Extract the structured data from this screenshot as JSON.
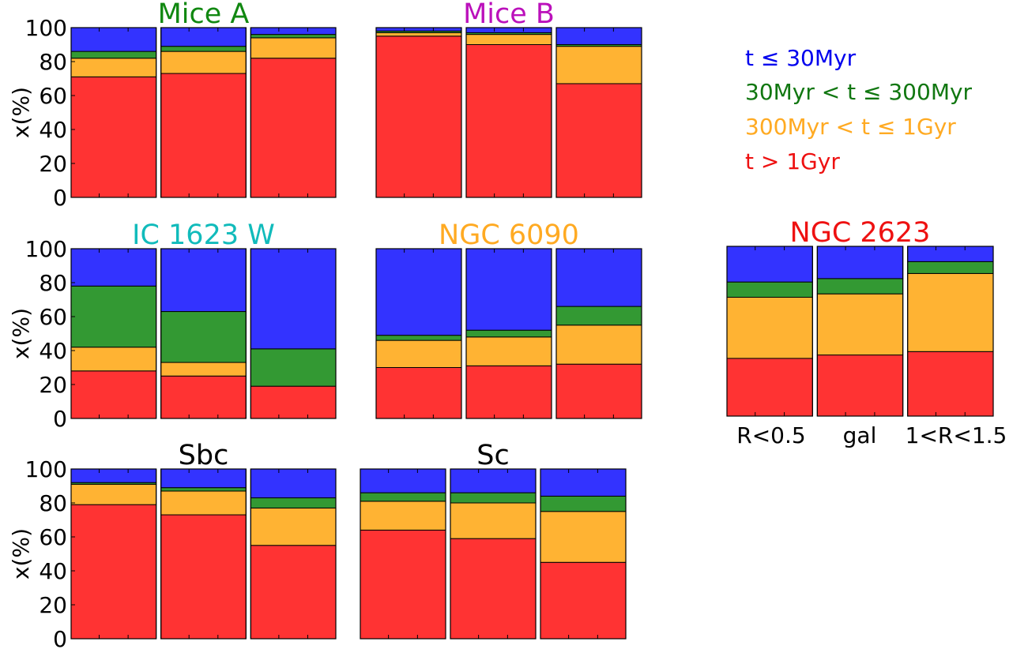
{
  "colors": {
    "young": "#3333ff",
    "intermediate": "#339933",
    "mid_old": "#ffb333",
    "old": "#ff3333"
  },
  "y_ticks": [
    "0",
    "20",
    "40",
    "60",
    "80",
    "100"
  ],
  "y_label": "x(%)",
  "legend": [
    {
      "label": "t ≤ 30Myr",
      "color": "#0000ee"
    },
    {
      "label": "30Myr < t ≤ 300Myr",
      "color": "#117711"
    },
    {
      "label": "300Myr < t ≤ 1Gyr",
      "color": "#ffaa22"
    },
    {
      "label": "t > 1Gyr",
      "color": "#ee1111"
    }
  ],
  "x_tick_labels": [
    "R<0.5",
    "gal",
    "1<R<1.5"
  ],
  "chart_data": [
    {
      "type": "bar",
      "stacked": true,
      "title": "Mice A",
      "title_color": "#118811",
      "ylabel": "x(%)",
      "ylim": [
        0,
        100
      ],
      "categories": [
        "R<0.5",
        "gal",
        "1<R<1.5"
      ],
      "series": [
        {
          "name": "t > 1Gyr",
          "values": [
            71,
            73,
            82
          ]
        },
        {
          "name": "300Myr < t ≤ 1Gyr",
          "values": [
            11,
            13,
            12
          ]
        },
        {
          "name": "30Myr < t ≤ 300Myr",
          "values": [
            4,
            3,
            2
          ]
        },
        {
          "name": "t ≤ 30Myr",
          "values": [
            14,
            11,
            4
          ]
        }
      ]
    },
    {
      "type": "bar",
      "stacked": true,
      "title": "Mice B",
      "title_color": "#bb11bb",
      "ylim": [
        0,
        100
      ],
      "categories": [
        "R<0.5",
        "gal",
        "1<R<1.5"
      ],
      "series": [
        {
          "name": "t > 1Gyr",
          "values": [
            95,
            90,
            67
          ]
        },
        {
          "name": "300Myr < t ≤ 1Gyr",
          "values": [
            2,
            6,
            22
          ]
        },
        {
          "name": "30Myr < t ≤ 300Myr",
          "values": [
            1,
            1,
            1
          ]
        },
        {
          "name": "t ≤ 30Myr",
          "values": [
            2,
            3,
            10
          ]
        }
      ]
    },
    {
      "type": "bar",
      "stacked": true,
      "title": "IC 1623 W",
      "title_color": "#11bbbb",
      "ylabel": "x(%)",
      "ylim": [
        0,
        100
      ],
      "categories": [
        "R<0.5",
        "gal",
        "1<R<1.5"
      ],
      "series": [
        {
          "name": "t > 1Gyr",
          "values": [
            28,
            25,
            19
          ]
        },
        {
          "name": "300Myr < t ≤ 1Gyr",
          "values": [
            14,
            8,
            0
          ]
        },
        {
          "name": "30Myr < t ≤ 300Myr",
          "values": [
            36,
            30,
            22
          ]
        },
        {
          "name": "t ≤ 30Myr",
          "values": [
            22,
            37,
            59
          ]
        }
      ]
    },
    {
      "type": "bar",
      "stacked": true,
      "title": "NGC 6090",
      "title_color": "#ffaa22",
      "ylim": [
        0,
        100
      ],
      "categories": [
        "R<0.5",
        "gal",
        "1<R<1.5"
      ],
      "series": [
        {
          "name": "t > 1Gyr",
          "values": [
            30,
            31,
            32
          ]
        },
        {
          "name": "300Myr < t ≤ 1Gyr",
          "values": [
            16,
            17,
            23
          ]
        },
        {
          "name": "30Myr < t ≤ 300Myr",
          "values": [
            3,
            4,
            11
          ]
        },
        {
          "name": "t ≤ 30Myr",
          "values": [
            51,
            48,
            34
          ]
        }
      ]
    },
    {
      "type": "bar",
      "stacked": true,
      "title": "NGC 2623",
      "title_color": "#ee1111",
      "ylim": [
        0,
        100
      ],
      "categories": [
        "R<0.5",
        "gal",
        "1<R<1.5"
      ],
      "series": [
        {
          "name": "t > 1Gyr",
          "values": [
            34,
            36,
            38
          ]
        },
        {
          "name": "300Myr < t ≤ 1Gyr",
          "values": [
            36,
            36,
            46
          ]
        },
        {
          "name": "30Myr < t ≤ 300Myr",
          "values": [
            9,
            9,
            7
          ]
        },
        {
          "name": "t ≤ 30Myr",
          "values": [
            21,
            19,
            9
          ]
        }
      ]
    },
    {
      "type": "bar",
      "stacked": true,
      "title": "Sbc",
      "title_color": "#000000",
      "ylabel": "x(%)",
      "ylim": [
        0,
        100
      ],
      "categories": [
        "R<0.5",
        "gal",
        "1<R<1.5"
      ],
      "series": [
        {
          "name": "t > 1Gyr",
          "values": [
            79,
            73,
            55
          ]
        },
        {
          "name": "300Myr < t ≤ 1Gyr",
          "values": [
            12,
            14,
            22
          ]
        },
        {
          "name": "30Myr < t ≤ 300Myr",
          "values": [
            1,
            2,
            6
          ]
        },
        {
          "name": "t ≤ 30Myr",
          "values": [
            8,
            11,
            17
          ]
        }
      ]
    },
    {
      "type": "bar",
      "stacked": true,
      "title": "Sc",
      "title_color": "#000000",
      "ylim": [
        0,
        100
      ],
      "categories": [
        "R<0.5",
        "gal",
        "1<R<1.5"
      ],
      "series": [
        {
          "name": "t > 1Gyr",
          "values": [
            64,
            59,
            45
          ]
        },
        {
          "name": "300Myr < t ≤ 1Gyr",
          "values": [
            17,
            21,
            30
          ]
        },
        {
          "name": "30Myr < t ≤ 300Myr",
          "values": [
            5,
            6,
            9
          ]
        },
        {
          "name": "t ≤ 30Myr",
          "values": [
            14,
            14,
            16
          ]
        }
      ]
    }
  ]
}
